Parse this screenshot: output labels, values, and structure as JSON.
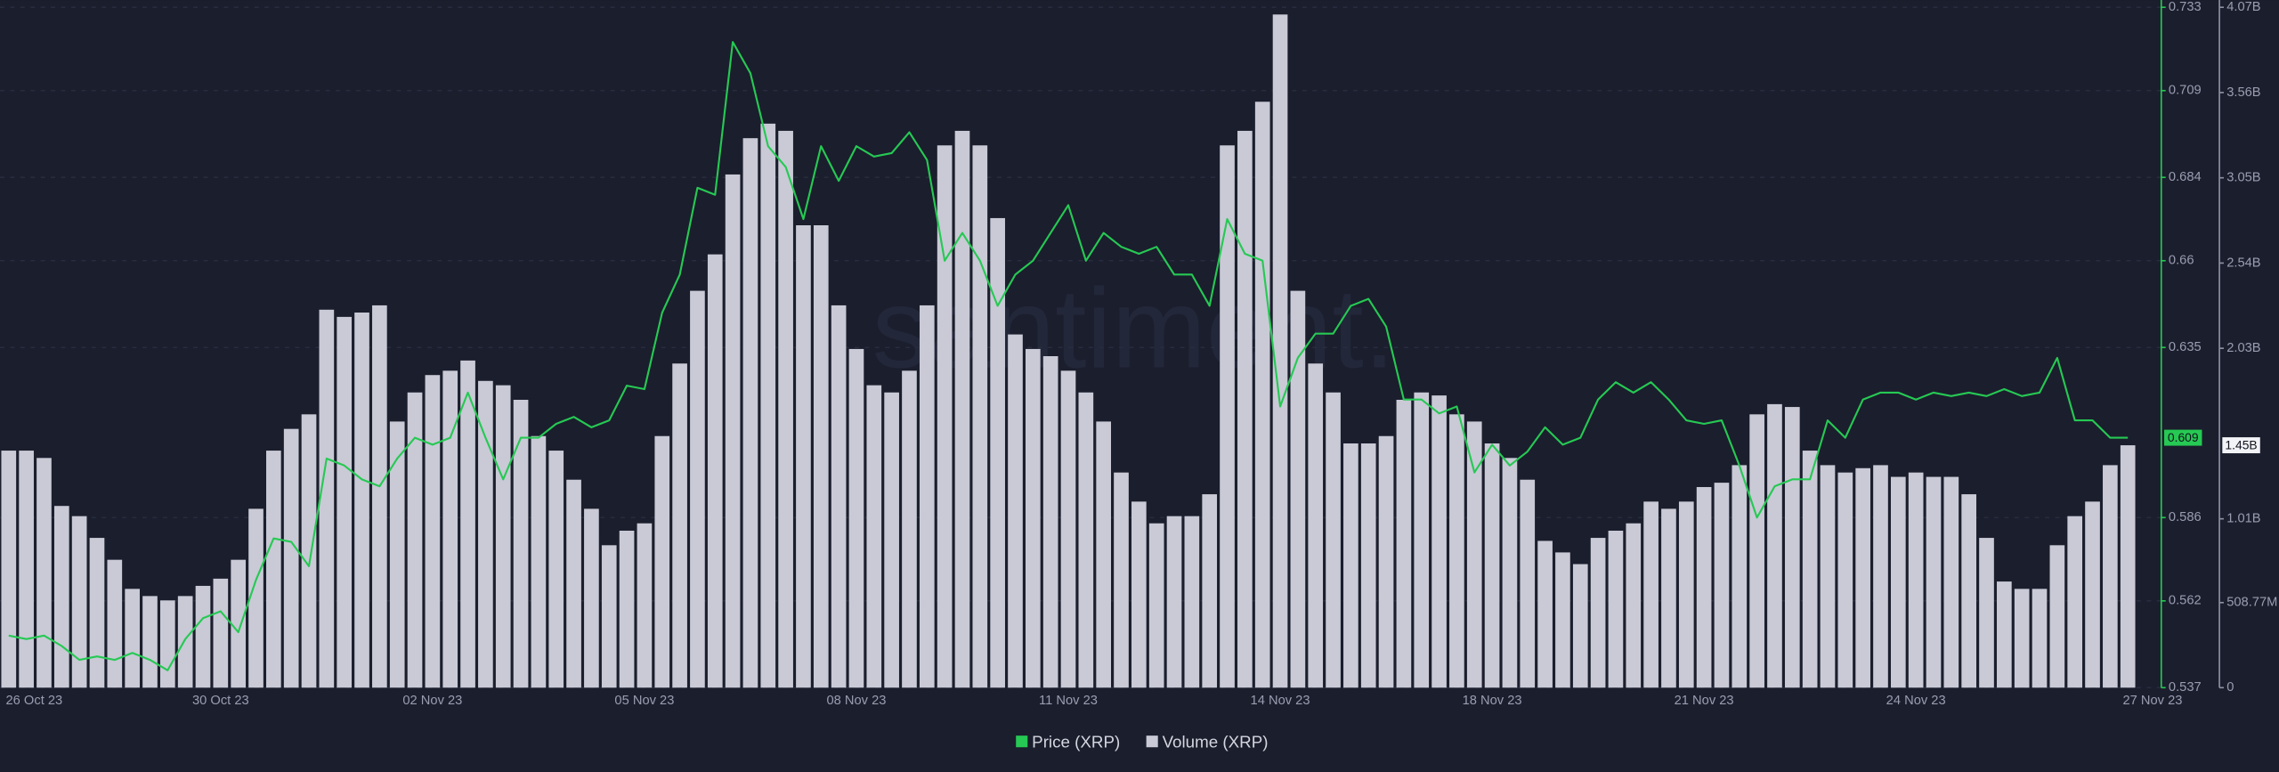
{
  "chart_data": {
    "type": "combo",
    "watermark": "santiment.",
    "categories": [
      "26 Oct 23",
      null,
      null,
      null,
      null,
      null,
      null,
      null,
      null,
      null,
      null,
      null,
      "30 Oct 23",
      null,
      null,
      null,
      null,
      null,
      null,
      null,
      null,
      null,
      null,
      null,
      "02 Nov 23",
      null,
      null,
      null,
      null,
      null,
      null,
      null,
      null,
      null,
      null,
      null,
      "05 Nov 23",
      null,
      null,
      null,
      null,
      null,
      null,
      null,
      null,
      null,
      null,
      null,
      "08 Nov 23",
      null,
      null,
      null,
      null,
      null,
      null,
      null,
      null,
      null,
      null,
      null,
      "11 Nov 23",
      null,
      null,
      null,
      null,
      null,
      null,
      null,
      null,
      null,
      null,
      null,
      "14 Nov 23",
      null,
      null,
      null,
      null,
      null,
      null,
      null,
      null,
      null,
      null,
      null,
      "18 Nov 23",
      null,
      null,
      null,
      null,
      null,
      null,
      null,
      null,
      null,
      null,
      null,
      "21 Nov 23",
      null,
      null,
      null,
      null,
      null,
      null,
      null,
      null,
      null,
      null,
      null,
      "24 Nov 23",
      null,
      null,
      null,
      null,
      null,
      null,
      null,
      null,
      null,
      null,
      null,
      "27 Nov 23"
    ],
    "ylim": [
      0.537,
      0.733
    ],
    "yticks": [
      0.537,
      0.562,
      0.586,
      0.635,
      0.66,
      0.684,
      0.709,
      0.733
    ],
    "y2lim": [
      0,
      4070000000
    ],
    "y2ticks": [
      0,
      {
        "value": 508770000,
        "label": "508.77M"
      },
      {
        "value": 1010000000,
        "label": "1.01B"
      },
      {
        "value": 2030000000,
        "label": "2.03B"
      },
      {
        "value": 2540000000,
        "label": "2.54B"
      },
      {
        "value": 3050000000,
        "label": "3.05B"
      },
      {
        "value": 3560000000,
        "label": "3.56B"
      },
      {
        "value": 4070000000,
        "label": "4.07B"
      }
    ],
    "grid": true,
    "series": [
      {
        "name": "Price (XRP)",
        "type": "line",
        "axis": "y",
        "color": "#26c953",
        "values": [
          0.552,
          0.551,
          0.552,
          0.549,
          0.545,
          0.546,
          0.545,
          0.547,
          0.545,
          0.542,
          0.551,
          0.557,
          0.559,
          0.553,
          0.568,
          0.58,
          0.579,
          0.572,
          0.603,
          0.601,
          0.597,
          0.595,
          0.603,
          0.609,
          0.607,
          0.609,
          0.622,
          0.609,
          0.597,
          0.609,
          0.609,
          0.613,
          0.615,
          0.612,
          0.614,
          0.624,
          0.623,
          0.645,
          0.656,
          0.681,
          0.679,
          0.723,
          0.714,
          0.693,
          0.687,
          0.672,
          0.693,
          0.683,
          0.693,
          0.69,
          0.691,
          0.697,
          0.689,
          0.66,
          0.668,
          0.66,
          0.647,
          0.656,
          0.66,
          0.668,
          0.676,
          0.66,
          0.668,
          0.664,
          0.662,
          0.664,
          0.656,
          0.656,
          0.647,
          0.672,
          0.662,
          0.66,
          0.618,
          0.632,
          0.639,
          0.639,
          0.647,
          0.649,
          0.641,
          0.62,
          0.62,
          0.616,
          0.618,
          0.599,
          0.607,
          0.601,
          0.605,
          0.612,
          0.607,
          0.609,
          0.62,
          0.625,
          0.622,
          0.625,
          0.62,
          0.614,
          0.613,
          0.614,
          0.601,
          0.586,
          0.595,
          0.597,
          0.597,
          0.614,
          0.609,
          0.62,
          0.622,
          0.622,
          0.62,
          0.622,
          0.621,
          0.622,
          0.621,
          0.623,
          0.621,
          0.622,
          0.632,
          0.614,
          0.614,
          0.609,
          0.609
        ]
      },
      {
        "name": "Volume (XRP)",
        "type": "bar",
        "axis": "y2",
        "color": "#c9cad6",
        "values": [
          1418000000,
          1418000000,
          1374000000,
          1087000000,
          1026000000,
          896000000,
          765000000,
          591000000,
          548000000,
          522000000,
          548000000,
          609000000,
          652000000,
          765000000,
          1070000000,
          1418000000,
          1548000000,
          1635000000,
          2261000000,
          2218000000,
          2244000000,
          2287000000,
          1592000000,
          1766000000,
          1870000000,
          1896000000,
          1957000000,
          1835000000,
          1809000000,
          1722000000,
          1505000000,
          1418000000,
          1244000000,
          1070000000,
          852000000,
          939000000,
          983000000,
          1505000000,
          1939000000,
          2374000000,
          2592000000,
          3070000000,
          3287000000,
          3374000000,
          3331000000,
          2766000000,
          2766000000,
          2287000000,
          2026000000,
          1809000000,
          1766000000,
          1896000000,
          2287000000,
          3244000000,
          3331000000,
          3244000000,
          2809000000,
          2113000000,
          2026000000,
          1983000000,
          1896000000,
          1766000000,
          1592000000,
          1287000000,
          1113000000,
          983000000,
          1026000000,
          1026000000,
          1157000000,
          3244000000,
          3331000000,
          3505000000,
          4027000000,
          2374000000,
          1939000000,
          1766000000,
          1461000000,
          1461000000,
          1505000000,
          1722000000,
          1766000000,
          1748000000,
          1635000000,
          1592000000,
          1461000000,
          1374000000,
          1244000000,
          878000000,
          809000000,
          739000000,
          896000000,
          939000000,
          983000000,
          1113000000,
          1070000000,
          1113000000,
          1200000000,
          1226000000,
          1331000000,
          1635000000,
          1696000000,
          1679000000,
          1418000000,
          1331000000,
          1287000000,
          1313000000,
          1331000000,
          1261000000,
          1287000000,
          1261000000,
          1261000000,
          1157000000,
          896000000,
          635000000,
          591000000,
          591000000,
          852000000,
          1026000000,
          1113000000,
          1331000000,
          1450000000
        ],
        "value_labels": {
          "120": "1.45B"
        }
      }
    ]
  }
}
